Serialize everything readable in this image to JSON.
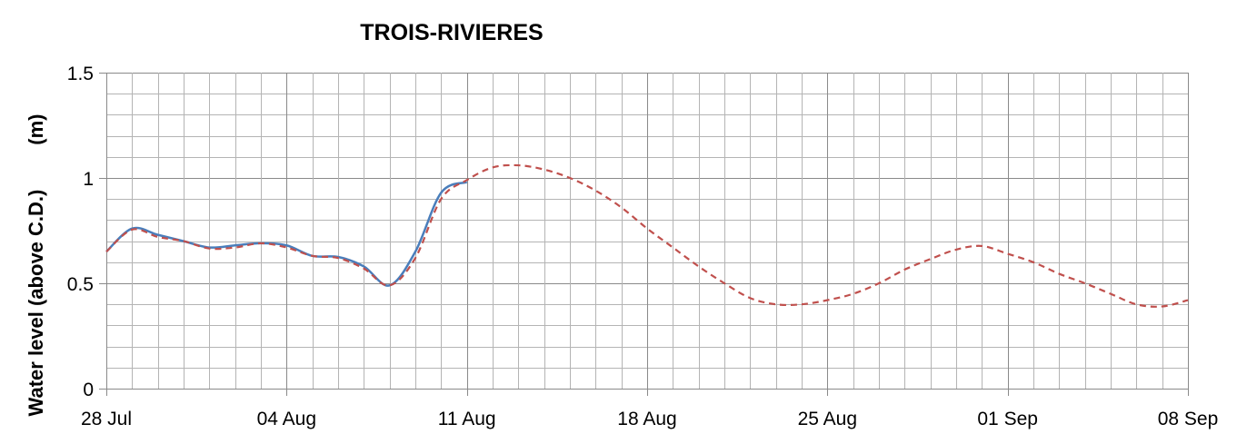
{
  "chart_data": {
    "type": "line",
    "title": "TROIS-RIVIERES",
    "ylabel": "Water level (above C.D.)        (m)",
    "xlabel": "",
    "x_start": "28 Jul",
    "x_ticks": [
      "28 Jul",
      "04 Aug",
      "11 Aug",
      "18 Aug",
      "25 Aug",
      "01 Sep",
      "08 Sep"
    ],
    "y_ticks": [
      "0",
      "0.5",
      "1",
      "1.5"
    ],
    "ylim": [
      0,
      1.5
    ],
    "xlim_days": [
      0,
      42
    ],
    "grid": true,
    "series": [
      {
        "color": "#4a7ebb",
        "style": "solid",
        "values": [
          0.65,
          0.76,
          0.73,
          0.7,
          0.67,
          0.68,
          0.69,
          0.68,
          0.63,
          0.625,
          0.58,
          0.49,
          0.65,
          0.93,
          0.98
        ]
      },
      {
        "color": "#c0504d",
        "style": "dashed",
        "values": [
          0.65,
          0.755,
          0.72,
          0.7,
          0.665,
          0.67,
          0.69,
          0.67,
          0.63,
          0.62,
          0.57,
          0.49,
          0.62,
          0.9,
          0.99,
          1.05,
          1.06,
          1.04,
          1.0,
          0.94,
          0.86,
          0.76,
          0.67,
          0.58,
          0.5,
          0.43,
          0.4,
          0.4,
          0.42,
          0.45,
          0.5,
          0.565,
          0.615,
          0.66,
          0.677,
          0.64,
          0.6,
          0.545,
          0.5,
          0.45,
          0.4,
          0.39,
          0.42
        ]
      }
    ]
  }
}
